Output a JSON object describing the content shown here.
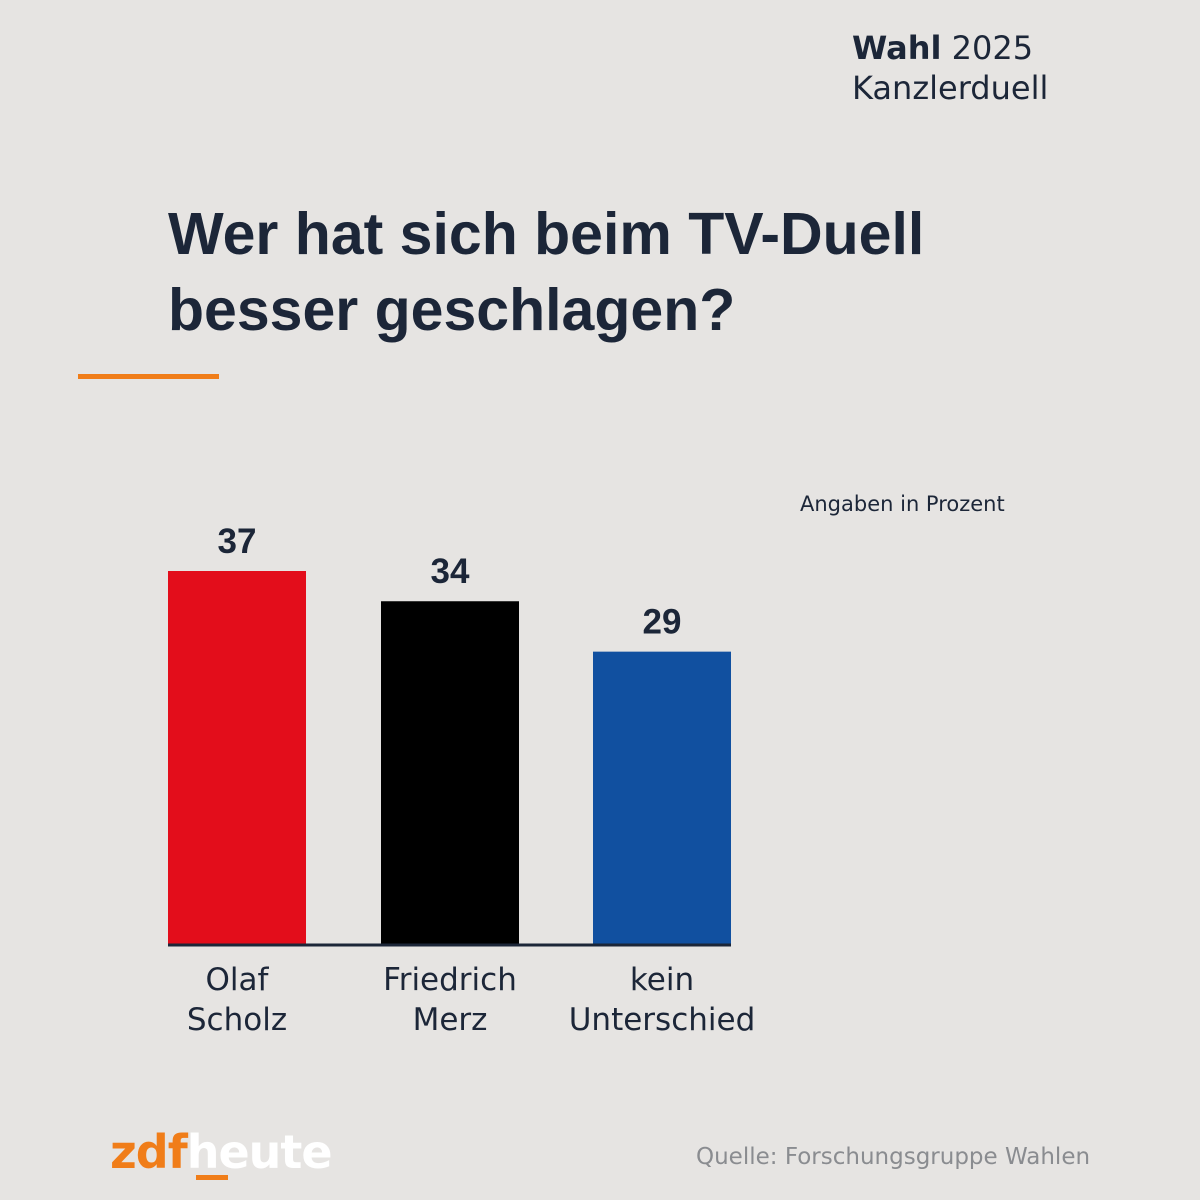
{
  "header": {
    "strong": "Wahl",
    "year": "2025",
    "subtitle": "Kanzlerduell"
  },
  "title": {
    "line1": "Wer hat sich beim TV-Duell",
    "line2": "besser geschlagen?"
  },
  "colors": {
    "accent": "#f07d19",
    "text": "#1c2638",
    "background": "#e6e4e2"
  },
  "unit_note": "Angaben in Prozent",
  "chart_data": {
    "type": "bar",
    "title": "Wer hat sich beim TV-Duell besser geschlagen?",
    "categories": [
      [
        "Olaf",
        "Scholz"
      ],
      [
        "Friedrich",
        "Merz"
      ],
      [
        "kein",
        "Unterschied"
      ]
    ],
    "values": [
      37,
      34,
      29
    ],
    "colors": [
      "#e30d1b",
      "#000000",
      "#1150a0"
    ],
    "ylabel": "Angaben in Prozent",
    "ylim": [
      0,
      37
    ],
    "grid": false,
    "legend": "none"
  },
  "footer": {
    "logo_zdf": "zdf",
    "logo_heute": "heute",
    "source": "Quelle: Forschungsgruppe Wahlen"
  }
}
